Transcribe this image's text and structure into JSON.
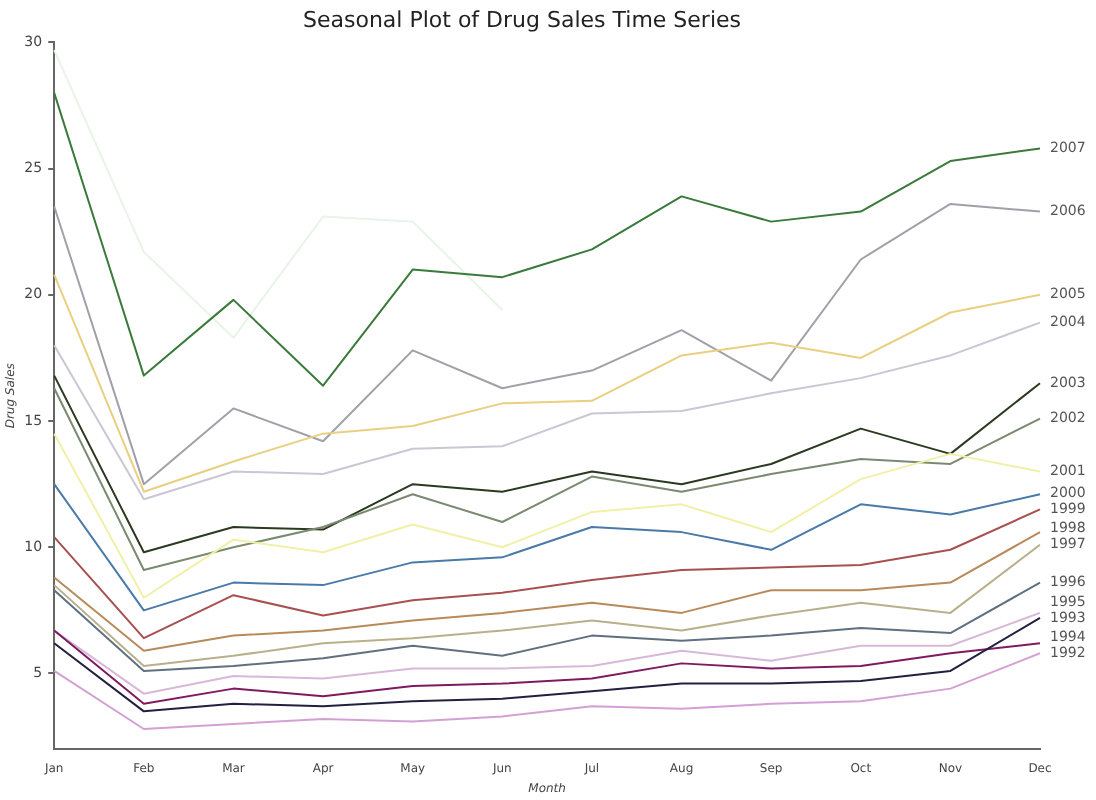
{
  "chart_data": {
    "type": "line",
    "title": "Seasonal Plot of Drug Sales Time Series",
    "xlabel": "Month",
    "ylabel": "Drug Sales",
    "categories": [
      "Jan",
      "Feb",
      "Mar",
      "Apr",
      "May",
      "Jun",
      "Jul",
      "Aug",
      "Sep",
      "Oct",
      "Nov",
      "Dec"
    ],
    "ylim": [
      2,
      30
    ],
    "yticks": [
      5,
      10,
      15,
      20,
      25,
      30
    ],
    "grid": false,
    "legend": false,
    "marker": "none",
    "line_style": "solid",
    "series": [
      {
        "name": "1992",
        "color": "#d4a0d4",
        "values": [
          5.1,
          2.8,
          3.0,
          3.2,
          3.1,
          3.3,
          3.7,
          3.6,
          3.8,
          3.9,
          4.4,
          5.8
        ]
      },
      {
        "name": "1993",
        "color": "#202040",
        "values": [
          6.2,
          3.5,
          3.8,
          3.7,
          3.9,
          4.0,
          4.3,
          4.6,
          4.6,
          4.7,
          5.1,
          7.2
        ]
      },
      {
        "name": "1994",
        "color": "#801a60",
        "values": [
          6.7,
          3.8,
          4.4,
          4.1,
          4.5,
          4.6,
          4.8,
          5.4,
          5.2,
          5.3,
          5.8,
          6.2
        ]
      },
      {
        "name": "1995",
        "color": "#d8b8d8",
        "values": [
          6.7,
          4.2,
          4.9,
          4.8,
          5.2,
          5.2,
          5.3,
          5.9,
          5.5,
          6.1,
          6.1,
          7.4
        ]
      },
      {
        "name": "1996",
        "color": "#607080",
        "values": [
          8.3,
          5.1,
          5.3,
          5.6,
          6.1,
          5.7,
          6.5,
          6.3,
          6.5,
          6.8,
          6.6,
          8.6
        ]
      },
      {
        "name": "1997",
        "color": "#b8b08a",
        "values": [
          8.5,
          5.3,
          5.7,
          6.2,
          6.4,
          6.7,
          7.1,
          6.7,
          7.3,
          7.8,
          7.4,
          10.1
        ]
      },
      {
        "name": "1998",
        "color": "#b88a5a",
        "values": [
          8.8,
          5.9,
          6.5,
          6.7,
          7.1,
          7.4,
          7.8,
          7.4,
          8.3,
          8.3,
          8.6,
          10.6
        ]
      },
      {
        "name": "1999",
        "color": "#a85050",
        "values": [
          10.4,
          6.4,
          8.1,
          7.3,
          7.9,
          8.2,
          8.7,
          9.1,
          9.2,
          9.3,
          9.9,
          11.5
        ]
      },
      {
        "name": "2000",
        "color": "#4a7aa8",
        "values": [
          12.5,
          7.5,
          8.6,
          8.5,
          9.4,
          9.6,
          10.8,
          10.6,
          9.9,
          11.7,
          11.3,
          12.1
        ]
      },
      {
        "name": "2001",
        "color": "#f0f0a8",
        "values": [
          14.5,
          8.0,
          10.3,
          9.8,
          10.9,
          10.0,
          11.4,
          11.7,
          10.6,
          12.7,
          13.7,
          13.0
        ]
      },
      {
        "name": "2002",
        "color": "#7a8a70",
        "values": [
          16.3,
          9.1,
          10.0,
          10.8,
          12.1,
          11.0,
          12.8,
          12.2,
          12.9,
          13.5,
          13.3,
          15.1
        ]
      },
      {
        "name": "2003",
        "color": "#2a3a20",
        "values": [
          16.8,
          9.8,
          10.8,
          10.7,
          12.5,
          12.2,
          13.0,
          12.5,
          13.3,
          14.7,
          13.7,
          16.5
        ]
      },
      {
        "name": "2004",
        "color": "#c8c8d4",
        "values": [
          18.0,
          11.9,
          13.0,
          12.9,
          13.9,
          14.0,
          15.3,
          15.4,
          16.1,
          16.7,
          17.6,
          18.9
        ]
      },
      {
        "name": "2005",
        "color": "#e8d080",
        "values": [
          20.8,
          12.2,
          13.4,
          14.5,
          14.8,
          15.7,
          15.8,
          17.6,
          18.1,
          17.5,
          19.3,
          20.0
        ]
      },
      {
        "name": "2006",
        "color": "#a0a0a8",
        "values": [
          23.5,
          12.5,
          15.5,
          14.2,
          17.8,
          16.3,
          17.0,
          18.6,
          16.6,
          21.4,
          23.6,
          23.3
        ]
      },
      {
        "name": "2007",
        "color": "#3a7a3a",
        "values": [
          28.0,
          16.8,
          19.8,
          16.4,
          21.0,
          20.7,
          21.8,
          23.9,
          22.9,
          23.3,
          25.3,
          25.8
        ]
      },
      {
        "color": "#e8f4e8",
        "values": [
          29.7,
          21.7,
          18.3,
          23.1,
          22.9,
          19.4,
          null,
          null,
          null,
          null,
          null,
          null
        ]
      }
    ]
  }
}
